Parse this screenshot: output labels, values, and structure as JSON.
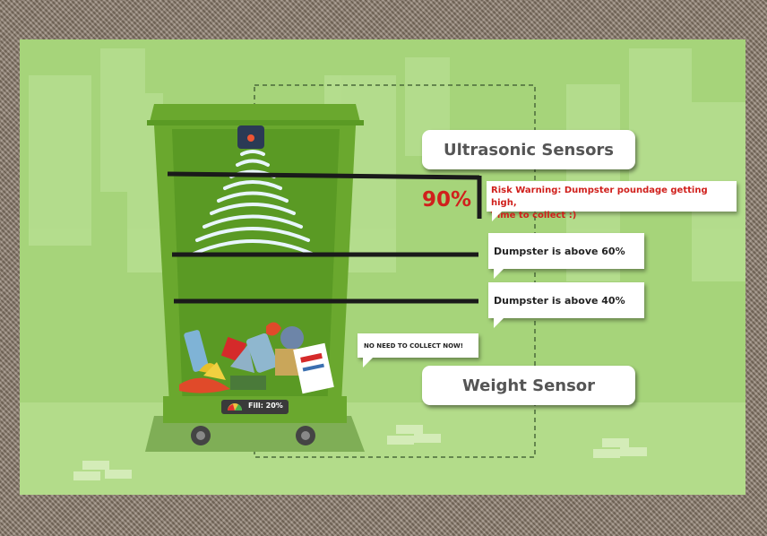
{
  "labels": {
    "ultrasonic": "Ultrasonic Sensors",
    "weight": "Weight Sensor"
  },
  "bin": {
    "fill_text": "Fill: 20%"
  },
  "level_readout": "90%",
  "messages": {
    "risk_line1": "Risk Warning: Dumpster poundage getting high,",
    "risk_line2": "Time to collect :)",
    "above60": "Dumpster is above 60%",
    "above40": "Dumpster is above 40%",
    "no_need": "NO NEED TO COLLECT NOW!"
  },
  "colors": {
    "background": "#a6d47a",
    "bin_body": "#6aa82e",
    "bin_inner": "#5a9a24",
    "warning_red": "#d0201c",
    "line_dark": "#1a1a1a"
  }
}
